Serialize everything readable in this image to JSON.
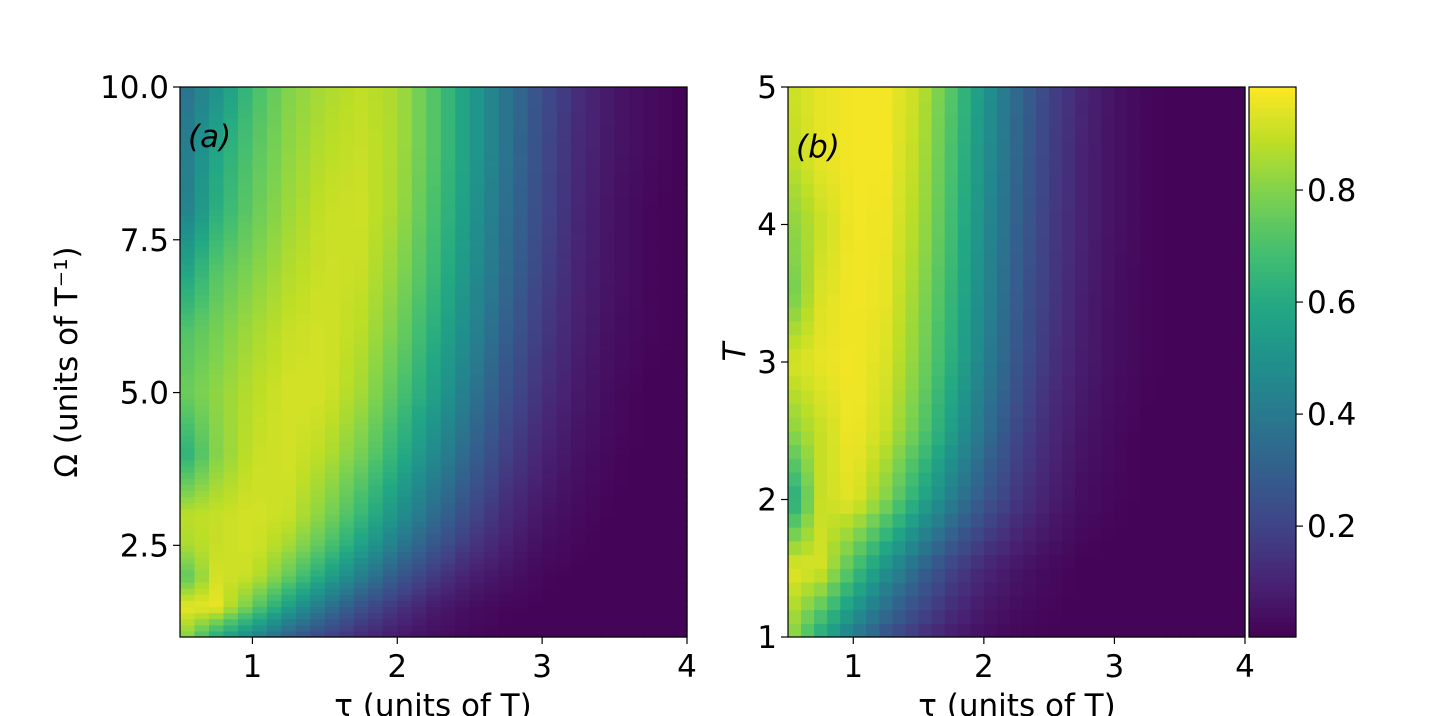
{
  "chart_data": [
    {
      "type": "heatmap",
      "panel_label": "(a)",
      "xlabel": "τ (units of T)",
      "ylabel": "Ω (units of T⁻¹)",
      "xlim": [
        0.5,
        4
      ],
      "ylim": [
        1,
        10
      ],
      "xticks": [
        "1",
        "2",
        "3",
        "4"
      ],
      "yticks": [
        "2.5",
        "5.0",
        "7.5",
        "10.0"
      ],
      "colormap": "viridis",
      "x": [
        0.5,
        0.75,
        1,
        1.25,
        1.5,
        1.75,
        2,
        2.25,
        2.5,
        2.75,
        3,
        3.25,
        3.5,
        3.75,
        4
      ],
      "y": [
        1,
        1.5,
        2,
        2.5,
        3,
        4,
        5,
        6,
        7,
        8,
        9,
        10
      ],
      "z": [
        [
          0.85,
          0.6,
          0.45,
          0.3,
          0.2,
          0.12,
          0.07,
          0.04,
          0.02,
          0.01,
          0.01,
          0.01,
          0.01,
          0.01,
          0.01
        ],
        [
          0.95,
          0.95,
          0.75,
          0.55,
          0.38,
          0.25,
          0.15,
          0.08,
          0.04,
          0.02,
          0.01,
          0.01,
          0.01,
          0.01,
          0.01
        ],
        [
          0.7,
          0.92,
          0.9,
          0.75,
          0.58,
          0.42,
          0.28,
          0.17,
          0.09,
          0.05,
          0.02,
          0.01,
          0.01,
          0.01,
          0.01
        ],
        [
          0.85,
          0.9,
          0.92,
          0.85,
          0.72,
          0.56,
          0.4,
          0.27,
          0.16,
          0.09,
          0.04,
          0.02,
          0.01,
          0.01,
          0.01
        ],
        [
          0.88,
          0.9,
          0.92,
          0.9,
          0.8,
          0.66,
          0.5,
          0.35,
          0.22,
          0.12,
          0.06,
          0.03,
          0.01,
          0.01,
          0.01
        ],
        [
          0.6,
          0.8,
          0.9,
          0.92,
          0.88,
          0.78,
          0.63,
          0.47,
          0.32,
          0.19,
          0.1,
          0.05,
          0.02,
          0.01,
          0.01
        ],
        [
          0.75,
          0.82,
          0.88,
          0.92,
          0.92,
          0.85,
          0.72,
          0.56,
          0.4,
          0.25,
          0.14,
          0.07,
          0.03,
          0.01,
          0.01
        ],
        [
          0.7,
          0.78,
          0.85,
          0.9,
          0.92,
          0.88,
          0.78,
          0.62,
          0.46,
          0.3,
          0.17,
          0.09,
          0.04,
          0.02,
          0.01
        ],
        [
          0.55,
          0.72,
          0.8,
          0.87,
          0.91,
          0.9,
          0.82,
          0.67,
          0.5,
          0.34,
          0.2,
          0.1,
          0.05,
          0.02,
          0.01
        ],
        [
          0.4,
          0.62,
          0.75,
          0.84,
          0.9,
          0.91,
          0.85,
          0.7,
          0.53,
          0.36,
          0.22,
          0.11,
          0.05,
          0.02,
          0.01
        ],
        [
          0.38,
          0.58,
          0.72,
          0.82,
          0.88,
          0.9,
          0.86,
          0.72,
          0.55,
          0.38,
          0.23,
          0.12,
          0.06,
          0.03,
          0.01
        ],
        [
          0.35,
          0.5,
          0.68,
          0.8,
          0.86,
          0.89,
          0.86,
          0.72,
          0.55,
          0.38,
          0.24,
          0.13,
          0.06,
          0.03,
          0.01
        ]
      ]
    },
    {
      "type": "heatmap",
      "panel_label": "(b)",
      "xlabel": "τ (units of T)",
      "ylabel": "T",
      "xlim": [
        0.5,
        4
      ],
      "ylim": [
        1,
        5
      ],
      "xticks": [
        "1",
        "2",
        "3",
        "4"
      ],
      "yticks": [
        "1",
        "2",
        "3",
        "4",
        "5"
      ],
      "colormap": "viridis",
      "x": [
        0.5,
        0.75,
        1,
        1.25,
        1.5,
        1.75,
        2,
        2.25,
        2.5,
        2.75,
        3,
        3.25,
        3.5,
        3.75,
        4
      ],
      "y": [
        1,
        1.5,
        2,
        2.5,
        3,
        3.5,
        4,
        4.5,
        5
      ],
      "z": [
        [
          0.85,
          0.6,
          0.4,
          0.25,
          0.15,
          0.08,
          0.04,
          0.02,
          0.01,
          0.01,
          0.01,
          0.01,
          0.01,
          0.01,
          0.01
        ],
        [
          0.95,
          0.92,
          0.7,
          0.5,
          0.33,
          0.2,
          0.11,
          0.06,
          0.03,
          0.01,
          0.01,
          0.01,
          0.01,
          0.01,
          0.01
        ],
        [
          0.55,
          0.9,
          0.95,
          0.8,
          0.6,
          0.42,
          0.27,
          0.16,
          0.09,
          0.04,
          0.02,
          0.01,
          0.01,
          0.01,
          0.01
        ],
        [
          0.8,
          0.9,
          0.97,
          0.9,
          0.75,
          0.55,
          0.37,
          0.22,
          0.12,
          0.06,
          0.03,
          0.01,
          0.01,
          0.01,
          0.01
        ],
        [
          0.92,
          0.95,
          0.97,
          0.93,
          0.8,
          0.62,
          0.43,
          0.27,
          0.15,
          0.08,
          0.04,
          0.02,
          0.01,
          0.01,
          0.01
        ],
        [
          0.75,
          0.93,
          0.97,
          0.95,
          0.83,
          0.65,
          0.46,
          0.29,
          0.17,
          0.09,
          0.04,
          0.02,
          0.01,
          0.01,
          0.01
        ],
        [
          0.8,
          0.9,
          0.97,
          0.96,
          0.86,
          0.68,
          0.48,
          0.31,
          0.18,
          0.1,
          0.05,
          0.02,
          0.01,
          0.01,
          0.01
        ],
        [
          0.88,
          0.95,
          0.97,
          0.97,
          0.88,
          0.7,
          0.5,
          0.33,
          0.19,
          0.1,
          0.05,
          0.02,
          0.01,
          0.01,
          0.01
        ],
        [
          0.9,
          0.95,
          0.97,
          0.97,
          0.9,
          0.72,
          0.52,
          0.34,
          0.2,
          0.11,
          0.05,
          0.02,
          0.01,
          0.01,
          0.01
        ]
      ]
    }
  ],
  "colorbar": {
    "range": [
      0.002,
      0.984
    ],
    "ticks": [
      "0.2",
      "0.4",
      "0.6",
      "0.8"
    ]
  }
}
